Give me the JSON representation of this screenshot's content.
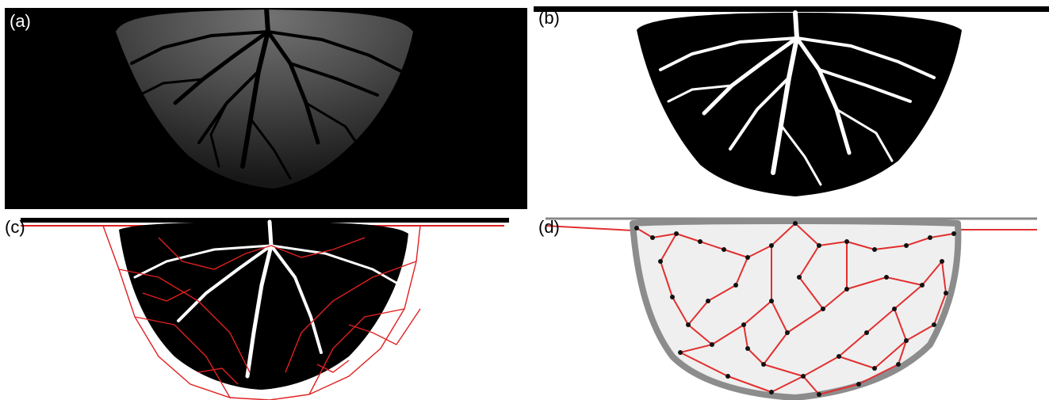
{
  "figure": {
    "panels": [
      {
        "label": "(a)"
      },
      {
        "label": "(b)"
      },
      {
        "label": "(c)"
      },
      {
        "label": "(d)"
      }
    ]
  },
  "colors": {
    "background_dark": "#000000",
    "channel_gray": "#b8b8b8",
    "mask_black": "#000000",
    "voronoi_red": "#e02020",
    "graph_red": "#e23030",
    "node_black": "#111111",
    "fan_light": "#efefef",
    "fan_edge_gray": "#8c8c8c"
  }
}
